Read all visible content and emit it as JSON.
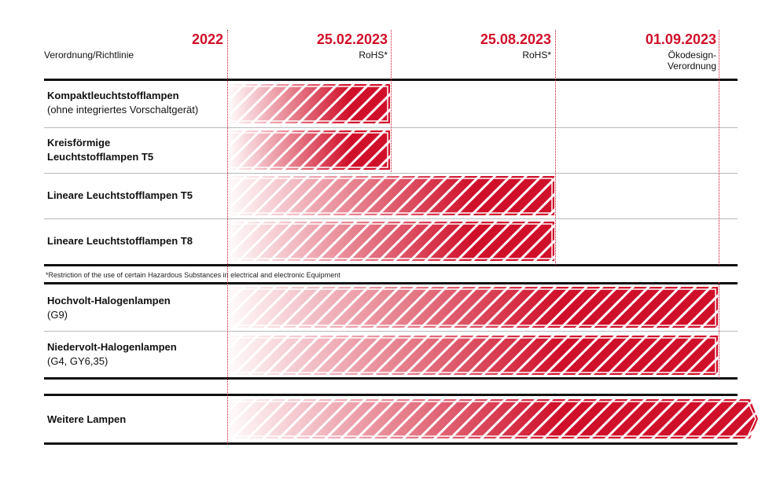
{
  "header": {
    "column_label": "Verordnung/Richtlinie",
    "dates": [
      {
        "date": "2022",
        "sub": ""
      },
      {
        "date": "25.02.2023",
        "sub": "RoHS*"
      },
      {
        "date": "25.08.2023",
        "sub": "RoHS*"
      },
      {
        "date": "01.09.2023",
        "sub": "Ökodesign-\nVerordnung"
      }
    ]
  },
  "rows": [
    {
      "title": "Kompaktleuchtstofflampen",
      "subtitle": "(ohne integriertes Vorschaltgerät)",
      "end": "25.02.2023"
    },
    {
      "title": "Kreisförmige",
      "subtitle": "Leuchtstofflampen T5",
      "subtitle_bold": true,
      "end": "25.02.2023"
    },
    {
      "title": "Lineare Leuchtstofflampen T5",
      "subtitle": "",
      "end": "25.08.2023"
    },
    {
      "title": "Lineare Leuchtstofflampen T8",
      "subtitle": "",
      "end": "25.08.2023"
    },
    {
      "title": "Hochvolt-Halogenlampen",
      "subtitle": "(G9)",
      "end": "01.09.2023"
    },
    {
      "title": "Niedervolt-Halogenlampen",
      "subtitle": "(G4, GY6,35)",
      "end": "01.09.2023"
    },
    {
      "title": "Weitere Lampen",
      "subtitle": "",
      "end": "open (arrow)"
    }
  ],
  "footnote": "*Restriction of the use of certain Hazardous Substances in electrical and electronic Equipment",
  "colors": {
    "accent": "#d0102a",
    "rule": "#111111",
    "divider": "#b9b9b9"
  },
  "chart_data": {
    "type": "timeline-gantt",
    "x_ticks": [
      "2022",
      "25.02.2023",
      "25.08.2023",
      "01.09.2023"
    ],
    "x_tick_notes": [
      "",
      "RoHS*",
      "RoHS*",
      "Ökodesign-Verordnung"
    ],
    "categories": [
      "Kompaktleuchtstofflampen (ohne integriertes Vorschaltgerät)",
      "Kreisförmige Leuchtstofflampen T5",
      "Lineare Leuchtstofflampen T5",
      "Lineare Leuchtstofflampen T8",
      "Hochvolt-Halogenlampen (G9)",
      "Niedervolt-Halogenlampen (G4, GY6,35)",
      "Weitere Lampen"
    ],
    "bars": [
      {
        "start": "2022",
        "end": "25.02.2023"
      },
      {
        "start": "2022",
        "end": "25.02.2023"
      },
      {
        "start": "2022",
        "end": "25.08.2023"
      },
      {
        "start": "2022",
        "end": "25.08.2023"
      },
      {
        "start": "2022",
        "end": "01.09.2023"
      },
      {
        "start": "2022",
        "end": "01.09.2023"
      },
      {
        "start": "2022",
        "end": "open (arrow)"
      }
    ],
    "xlabel": "",
    "ylabel": "Verordnung/Richtlinie"
  }
}
